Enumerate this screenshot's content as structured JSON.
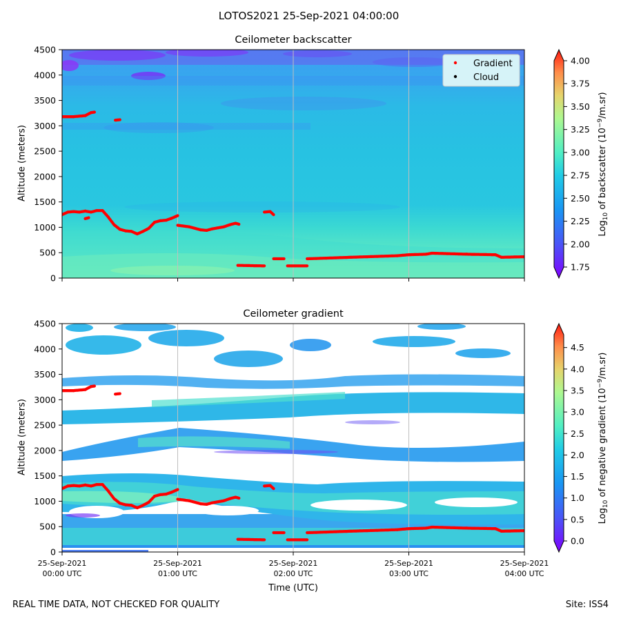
{
  "figure": {
    "suptitle": "LOTOS2021 25-Sep-2021 04:00:00",
    "footer_left": "REAL TIME DATA, NOT CHECKED FOR QUALITY",
    "footer_right": "Site: ISS4",
    "xlabel": "Time (UTC)",
    "x_ticks": [
      {
        "date": "25-Sep-2021",
        "time": "00:00 UTC"
      },
      {
        "date": "25-Sep-2021",
        "time": "01:00 UTC"
      },
      {
        "date": "25-Sep-2021",
        "time": "02:00 UTC"
      },
      {
        "date": "25-Sep-2021",
        "time": "03:00 UTC"
      },
      {
        "date": "25-Sep-2021",
        "time": "04:00 UTC"
      }
    ]
  },
  "colors": {
    "gradient_points": "#ff0000",
    "cloud_points": "#000000",
    "legend_bg": "#d6f3f8"
  },
  "chart_data": [
    {
      "type": "heatmap",
      "title": "Ceilometer backscatter",
      "ylabel": "Altitude (meters)",
      "xlabel": "",
      "xlim_hours": [
        0,
        4
      ],
      "ylim": [
        0,
        4500
      ],
      "yticks": [
        0,
        500,
        1000,
        1500,
        2000,
        2500,
        3000,
        3500,
        4000,
        4500
      ],
      "colorbar": {
        "label_prefix": "Log",
        "label_sub": "10",
        "label_main": " of backscatter (10",
        "label_sup": "−9",
        "label_end": "/m.sr)",
        "range": [
          1.75,
          4.0
        ],
        "ticks": [
          "1.75",
          "2.00",
          "2.25",
          "2.50",
          "2.75",
          "3.00",
          "3.25",
          "3.50",
          "3.75",
          "4.00"
        ],
        "extend": "both"
      },
      "legend": [
        {
          "label": "Gradient",
          "color": "#ff0000"
        },
        {
          "label": "Cloud",
          "color": "#000000"
        }
      ],
      "series": [
        {
          "name": "Gradient",
          "points": [
            [
              0.0,
              1250
            ],
            [
              0.05,
              1300
            ],
            [
              0.1,
              1310
            ],
            [
              0.15,
              1300
            ],
            [
              0.2,
              1320
            ],
            [
              0.25,
              1300
            ],
            [
              0.3,
              1330
            ],
            [
              0.35,
              1330
            ],
            [
              0.4,
              1200
            ],
            [
              0.45,
              1050
            ],
            [
              0.5,
              960
            ],
            [
              0.55,
              930
            ],
            [
              0.6,
              920
            ],
            [
              0.65,
              870
            ],
            [
              0.7,
              920
            ],
            [
              0.75,
              980
            ],
            [
              0.8,
              1100
            ],
            [
              0.85,
              1130
            ],
            [
              0.9,
              1140
            ],
            [
              0.95,
              1180
            ],
            [
              1.0,
              1230
            ]
          ]
        },
        {
          "name": "Gradient",
          "points": [
            [
              0.0,
              3180
            ],
            [
              0.1,
              3180
            ],
            [
              0.2,
              3200
            ],
            [
              0.25,
              3260
            ],
            [
              0.28,
              3270
            ]
          ]
        },
        {
          "name": "Gradient",
          "points": [
            [
              0.46,
              3110
            ],
            [
              0.5,
              3120
            ]
          ]
        },
        {
          "name": "Gradient",
          "points": [
            [
              0.2,
              1170
            ],
            [
              0.23,
              1190
            ]
          ]
        },
        {
          "name": "Gradient",
          "points": [
            [
              1.0,
              1040
            ],
            [
              1.1,
              1010
            ],
            [
              1.2,
              950
            ],
            [
              1.25,
              940
            ],
            [
              1.3,
              970
            ],
            [
              1.4,
              1010
            ],
            [
              1.45,
              1050
            ],
            [
              1.5,
              1080
            ],
            [
              1.53,
              1060
            ]
          ]
        },
        {
          "name": "Gradient",
          "points": [
            [
              1.75,
              1300
            ],
            [
              1.8,
              1310
            ],
            [
              1.83,
              1250
            ]
          ]
        },
        {
          "name": "Gradient",
          "points": [
            [
              1.52,
              250
            ],
            [
              1.75,
              240
            ]
          ]
        },
        {
          "name": "Gradient",
          "points": [
            [
              1.83,
              380
            ],
            [
              1.92,
              380
            ]
          ]
        },
        {
          "name": "Gradient",
          "points": [
            [
              1.95,
              240
            ],
            [
              2.12,
              240
            ]
          ]
        },
        {
          "name": "Gradient",
          "points": [
            [
              2.12,
              380
            ],
            [
              2.5,
              410
            ],
            [
              2.9,
              440
            ],
            [
              3.0,
              460
            ],
            [
              3.15,
              470
            ],
            [
              3.2,
              490
            ],
            [
              3.5,
              470
            ],
            [
              3.75,
              460
            ],
            [
              3.8,
              410
            ],
            [
              4.0,
              420
            ]
          ]
        }
      ]
    },
    {
      "type": "heatmap",
      "title": "Ceilometer gradient",
      "ylabel": "Altitude (meters)",
      "xlabel": "Time (UTC)",
      "xlim_hours": [
        0,
        4
      ],
      "ylim": [
        0,
        4500
      ],
      "yticks": [
        0,
        500,
        1000,
        1500,
        2000,
        2500,
        3000,
        3500,
        4000,
        4500
      ],
      "colorbar": {
        "label_prefix": "Log",
        "label_sub": "10",
        "label_main": " of negative gradient (10",
        "label_sup": "−9",
        "label_end": "/m.sr)",
        "range": [
          0.0,
          4.8
        ],
        "ticks": [
          "0.0",
          "0.5",
          "1.0",
          "1.5",
          "2.0",
          "2.5",
          "3.0",
          "3.5",
          "4.0",
          "4.5"
        ],
        "extend": "both"
      },
      "series": [
        {
          "name": "Gradient",
          "points": [
            [
              0.0,
              1250
            ],
            [
              0.05,
              1300
            ],
            [
              0.1,
              1310
            ],
            [
              0.15,
              1300
            ],
            [
              0.2,
              1320
            ],
            [
              0.25,
              1300
            ],
            [
              0.3,
              1330
            ],
            [
              0.35,
              1330
            ],
            [
              0.4,
              1200
            ],
            [
              0.45,
              1050
            ],
            [
              0.5,
              960
            ],
            [
              0.55,
              930
            ],
            [
              0.6,
              920
            ],
            [
              0.65,
              870
            ],
            [
              0.7,
              920
            ],
            [
              0.75,
              980
            ],
            [
              0.8,
              1100
            ],
            [
              0.85,
              1130
            ],
            [
              0.9,
              1140
            ],
            [
              0.95,
              1180
            ],
            [
              1.0,
              1230
            ]
          ]
        },
        {
          "name": "Gradient",
          "points": [
            [
              0.0,
              3180
            ],
            [
              0.1,
              3180
            ],
            [
              0.2,
              3200
            ],
            [
              0.25,
              3260
            ],
            [
              0.28,
              3270
            ]
          ]
        },
        {
          "name": "Gradient",
          "points": [
            [
              0.46,
              3110
            ],
            [
              0.5,
              3120
            ]
          ]
        },
        {
          "name": "Gradient",
          "points": [
            [
              1.0,
              1040
            ],
            [
              1.1,
              1010
            ],
            [
              1.2,
              950
            ],
            [
              1.25,
              940
            ],
            [
              1.3,
              970
            ],
            [
              1.4,
              1010
            ],
            [
              1.45,
              1050
            ],
            [
              1.5,
              1080
            ],
            [
              1.53,
              1060
            ]
          ]
        },
        {
          "name": "Gradient",
          "points": [
            [
              1.75,
              1300
            ],
            [
              1.8,
              1310
            ],
            [
              1.83,
              1250
            ]
          ]
        },
        {
          "name": "Gradient",
          "points": [
            [
              1.52,
              250
            ],
            [
              1.75,
              240
            ]
          ]
        },
        {
          "name": "Gradient",
          "points": [
            [
              1.83,
              380
            ],
            [
              1.92,
              380
            ]
          ]
        },
        {
          "name": "Gradient",
          "points": [
            [
              1.95,
              240
            ],
            [
              2.12,
              240
            ]
          ]
        },
        {
          "name": "Gradient",
          "points": [
            [
              2.12,
              380
            ],
            [
              2.5,
              410
            ],
            [
              2.9,
              440
            ],
            [
              3.0,
              460
            ],
            [
              3.15,
              470
            ],
            [
              3.2,
              490
            ],
            [
              3.5,
              470
            ],
            [
              3.75,
              460
            ],
            [
              3.8,
              410
            ],
            [
              4.0,
              420
            ]
          ]
        }
      ]
    }
  ]
}
